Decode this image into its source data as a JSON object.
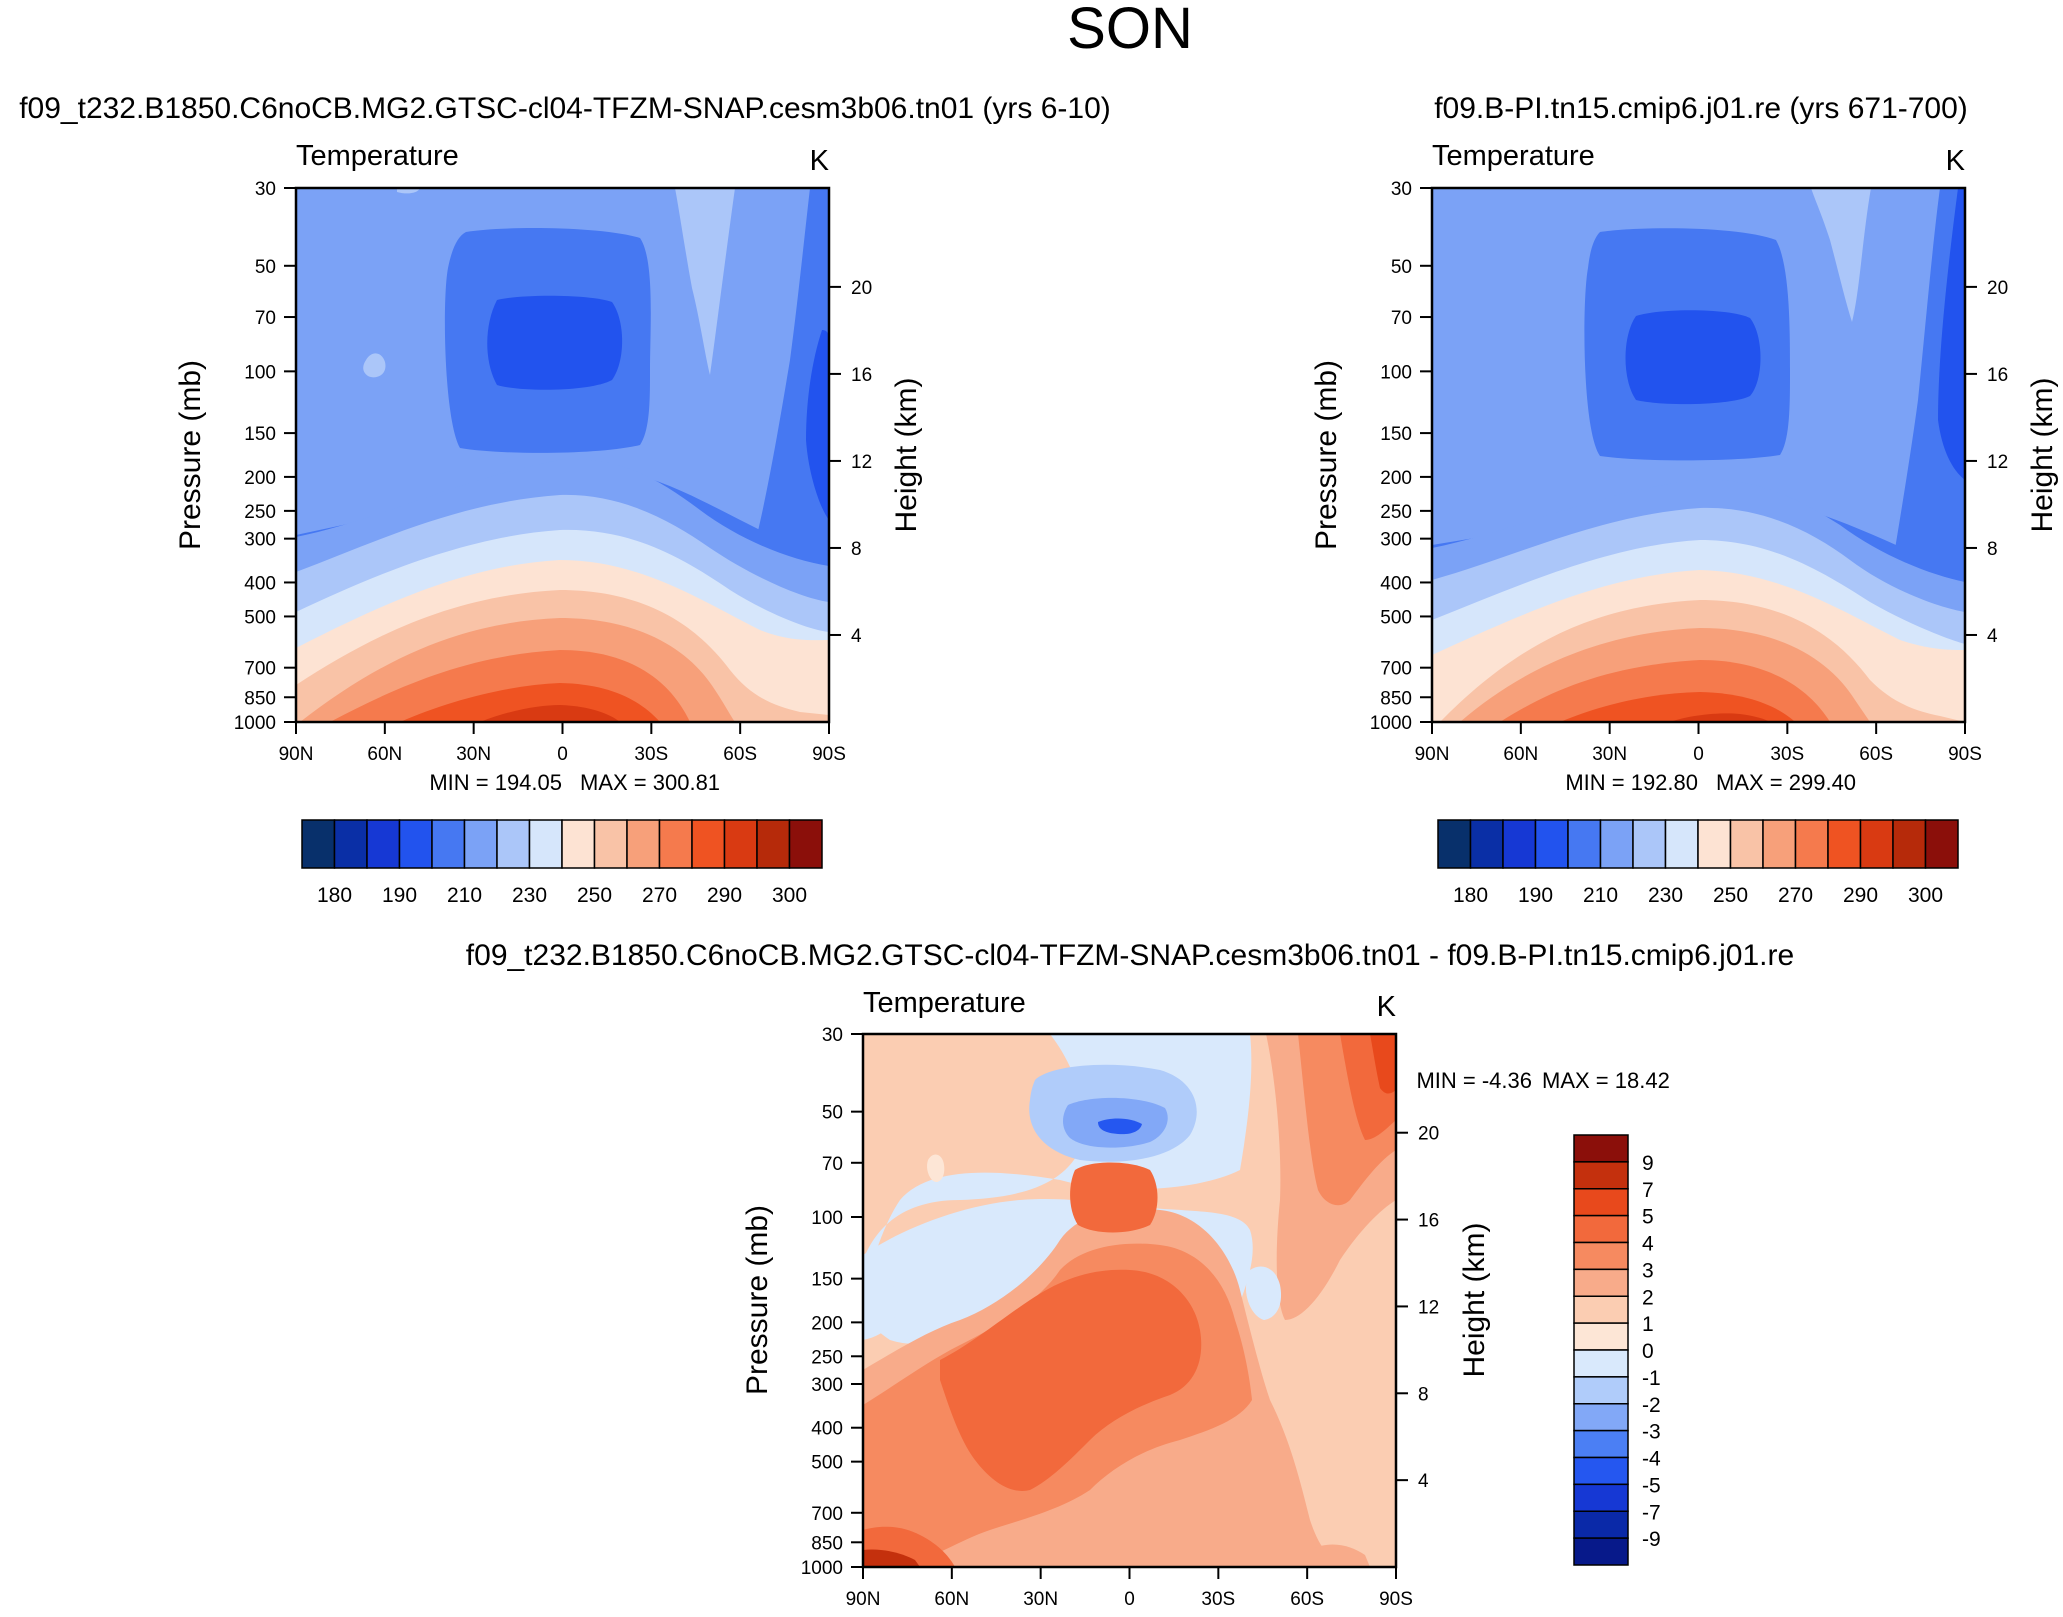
{
  "figure": {
    "title": "SON"
  },
  "colors": {
    "levels": [
      "#08306b",
      "#0a2fa6",
      "#1638d4",
      "#2253ee",
      "#4678f2",
      "#7ba2f6",
      "#abc6f9",
      "#d6e6fb",
      "#fde3d3",
      "#f9c3a7",
      "#f7a07a",
      "#f57a4d",
      "#ef5322",
      "#d93a12",
      "#b62a0a",
      "#8b0f0a"
    ],
    "diff_levels": [
      "#07198a",
      "#0a29a8",
      "#1638d4",
      "#2557f0",
      "#4b7ff4",
      "#82a8f7",
      "#b0ccfa",
      "#d9e9fc",
      "#fde6d6",
      "#fbcdb2",
      "#f8ab8a",
      "#f68a60",
      "#f2693c",
      "#e8491c",
      "#c4300d",
      "#8b0f0a"
    ]
  },
  "chart_data": [
    {
      "type": "contour",
      "case_title": "f09_t232.B1850.C6noCB.MG2.GTSC-cl04-TFZM-SNAP.cesm3b06.tn01 (yrs 6-10)",
      "left_string": "Temperature",
      "right_string": "K",
      "ylabel": "Pressure (mb)",
      "ylabel_right": "Height (km)",
      "pressure_ticks": [
        "30",
        "50",
        "70",
        "100",
        "150",
        "200",
        "250",
        "300",
        "400",
        "500",
        "700",
        "850",
        "1000"
      ],
      "height_ticks": [
        "20",
        "16",
        "12",
        "8",
        "4"
      ],
      "lat_ticks": [
        "90N",
        "60N",
        "30N",
        "0",
        "30S",
        "60S",
        "90S"
      ],
      "min_text": "MIN = 194.05",
      "max_text": "MAX = 300.81",
      "colorbar_labels": [
        "180",
        "190",
        "210",
        "230",
        "250",
        "270",
        "290",
        "300"
      ],
      "min": 194.05,
      "max": 300.81
    },
    {
      "type": "contour",
      "case_title": "f09.B-PI.tn15.cmip6.j01.re (yrs 671-700)",
      "left_string": "Temperature",
      "right_string": "K",
      "ylabel": "Pressure (mb)",
      "ylabel_right": "Height (km)",
      "pressure_ticks": [
        "30",
        "50",
        "70",
        "100",
        "150",
        "200",
        "250",
        "300",
        "400",
        "500",
        "700",
        "850",
        "1000"
      ],
      "height_ticks": [
        "20",
        "16",
        "12",
        "8",
        "4"
      ],
      "lat_ticks": [
        "90N",
        "60N",
        "30N",
        "0",
        "30S",
        "60S",
        "90S"
      ],
      "min_text": "MIN = 192.80",
      "max_text": "MAX = 299.40",
      "colorbar_labels": [
        "180",
        "190",
        "210",
        "230",
        "250",
        "270",
        "290",
        "300"
      ],
      "min": 192.8,
      "max": 299.4
    },
    {
      "type": "contour",
      "case_title": "f09_t232.B1850.C6noCB.MG2.GTSC-cl04-TFZM-SNAP.cesm3b06.tn01 - f09.B-PI.tn15.cmip6.j01.re",
      "left_string": "Temperature",
      "right_string": "K",
      "ylabel": "Pressure (mb)",
      "ylabel_right": "Height (km)",
      "pressure_ticks": [
        "30",
        "50",
        "70",
        "100",
        "150",
        "200",
        "250",
        "300",
        "400",
        "500",
        "700",
        "850",
        "1000"
      ],
      "height_ticks": [
        "20",
        "16",
        "12",
        "8",
        "4"
      ],
      "lat_ticks": [
        "90N",
        "60N",
        "30N",
        "0",
        "30S",
        "60S",
        "90S"
      ],
      "min_text": "MIN =  -4.36",
      "max_text": "MAX =  18.42",
      "colorbar_labels": [
        "9",
        "7",
        "5",
        "4",
        "3",
        "2",
        "1",
        "0",
        "-1",
        "-2",
        "-3",
        "-4",
        "-5",
        "-7",
        "-9"
      ],
      "min": -4.36,
      "max": 18.42
    }
  ]
}
